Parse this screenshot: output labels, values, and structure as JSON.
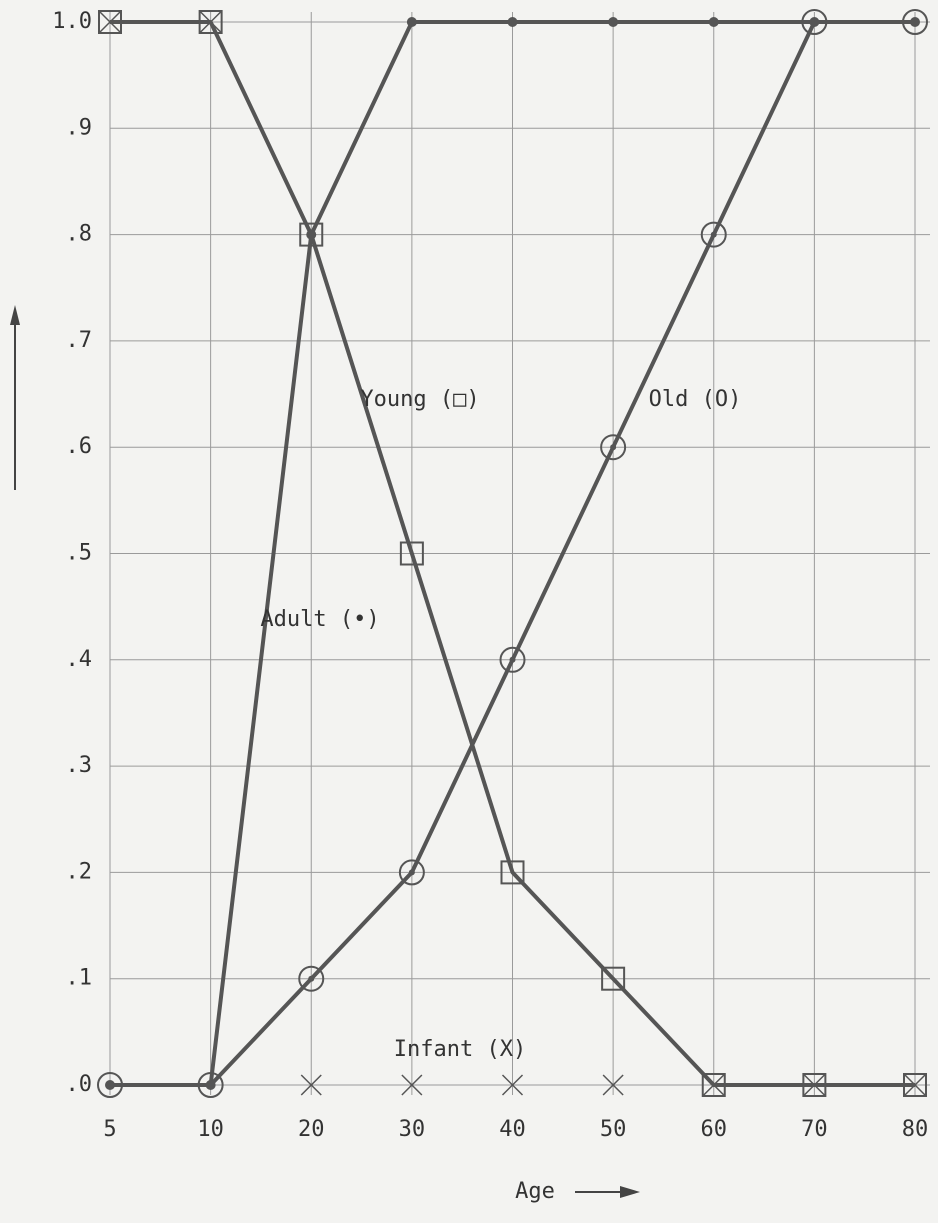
{
  "chart_data": {
    "type": "line",
    "x_label": "Age",
    "categories": [
      "5",
      "10",
      "20",
      "30",
      "40",
      "50",
      "60",
      "70",
      "80"
    ],
    "ylim": [
      0,
      1
    ],
    "yticks": [
      {
        "value": 0,
        "label": ".0"
      },
      {
        "value": 0.1,
        "label": ".1"
      },
      {
        "value": 0.2,
        "label": ".2"
      },
      {
        "value": 0.3,
        "label": ".3"
      },
      {
        "value": 0.4,
        "label": ".4"
      },
      {
        "value": 0.5,
        "label": ".5"
      },
      {
        "value": 0.6,
        "label": ".6"
      },
      {
        "value": 0.7,
        "label": ".7"
      },
      {
        "value": 0.8,
        "label": ".8"
      },
      {
        "value": 0.9,
        "label": ".9"
      },
      {
        "value": 1,
        "label": "1.0"
      }
    ],
    "grid": true,
    "series": [
      {
        "name": "Young (□)",
        "color": "#555555",
        "marker": "square",
        "values": [
          1,
          1,
          0.8,
          0.5,
          0.2,
          0.1,
          0,
          0,
          0
        ]
      },
      {
        "name": "Old (O)",
        "color": "#555555",
        "marker": "circle",
        "values": [
          0,
          0,
          0.1,
          0.2,
          0.4,
          0.6,
          0.8,
          1,
          1
        ]
      },
      {
        "name": "Adult (•)",
        "color": "#555555",
        "marker": "dot",
        "values": [
          0,
          0,
          0.8,
          1,
          1,
          1,
          1,
          1,
          1
        ]
      },
      {
        "name": "Infant (X)",
        "color": "#555555",
        "marker": "cross",
        "values": [
          1,
          1,
          0,
          0,
          0,
          0,
          0,
          0,
          0
        ]
      }
    ]
  }
}
